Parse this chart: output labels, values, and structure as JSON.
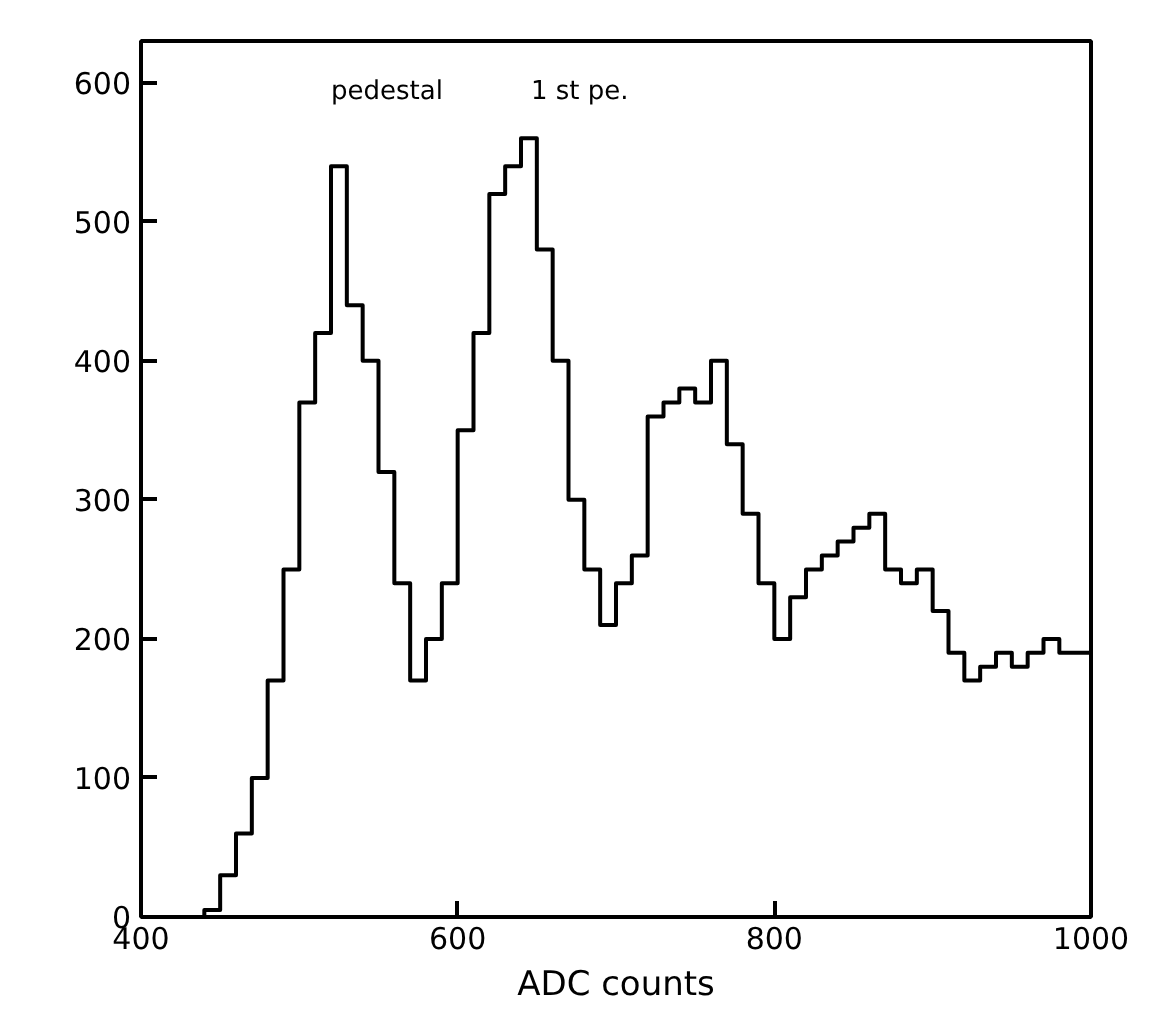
{
  "chart_data": {
    "type": "histogram",
    "xlabel": "ADC counts",
    "bins": [
      400,
      410,
      420,
      430,
      440,
      450,
      460,
      470,
      480,
      490,
      500,
      510,
      520,
      530,
      540,
      550,
      560,
      570,
      580,
      590,
      600,
      610,
      620,
      630,
      640,
      650,
      660,
      670,
      680,
      690,
      700,
      710,
      720,
      730,
      740,
      750,
      760,
      770,
      780,
      790,
      800,
      810,
      820,
      830,
      840,
      850,
      860,
      870,
      880,
      890,
      900,
      910,
      920,
      930,
      940,
      950,
      960,
      970,
      980,
      990,
      1000
    ],
    "values": [
      0,
      0,
      0,
      0,
      5,
      30,
      60,
      100,
      170,
      250,
      370,
      420,
      540,
      440,
      400,
      320,
      240,
      170,
      200,
      240,
      350,
      420,
      520,
      540,
      560,
      480,
      400,
      300,
      250,
      210,
      240,
      260,
      360,
      370,
      380,
      370,
      400,
      340,
      290,
      240,
      200,
      230,
      250,
      260,
      270,
      280,
      290,
      250,
      240,
      250,
      220,
      190,
      170,
      180,
      190,
      180,
      190,
      200,
      190,
      190
    ],
    "color": "#000000",
    "xlim": [
      400,
      1000
    ],
    "ylim": [
      0,
      630
    ],
    "xticks": [
      400,
      600,
      800,
      1000
    ],
    "yticks": [
      0,
      100,
      200,
      300,
      400,
      500,
      600
    ],
    "grid": false,
    "annotations": [
      "pedestal",
      "1 st pe."
    ]
  }
}
